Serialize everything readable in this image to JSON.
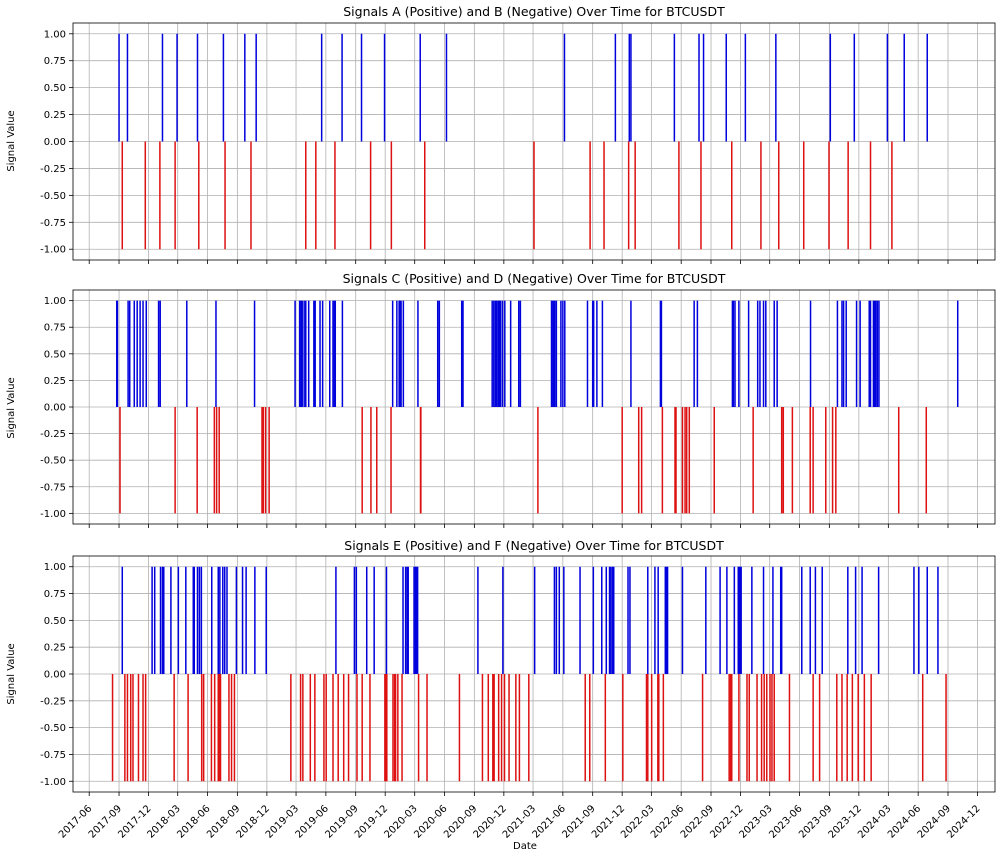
{
  "xlabel": "Date",
  "colors": {
    "positive": "#0000dd",
    "negative": "#dd1111",
    "grid": "#b0b0b0"
  },
  "x_ticks": [
    "2017-06",
    "2017-09",
    "2017-12",
    "2018-03",
    "2018-06",
    "2018-09",
    "2018-12",
    "2019-03",
    "2019-06",
    "2019-09",
    "2019-12",
    "2020-03",
    "2020-06",
    "2020-09",
    "2020-12",
    "2021-03",
    "2021-06",
    "2021-09",
    "2021-12",
    "2022-03",
    "2022-06",
    "2022-09",
    "2022-12",
    "2023-03",
    "2023-06",
    "2023-09",
    "2023-12",
    "2024-03",
    "2024-06",
    "2024-09",
    "2024-12"
  ],
  "chart_data": [
    {
      "type": "bar",
      "title": "Signals A (Positive) and B (Negative) Over Time for BTCUSDT",
      "ylabel": "Signal Value",
      "ylim": [
        -1.1,
        1.1
      ],
      "xlim": [
        "2017-04-12",
        "2025-01-24"
      ],
      "y_ticks": [
        "1.00",
        "0.75",
        "0.50",
        "0.25",
        "0.00",
        "-0.25",
        "-0.50",
        "-0.75",
        "-1.00"
      ],
      "grid": true,
      "series": [
        {
          "name": "",
          "value": 1,
          "dates": [
            "2017-09-01",
            "2017-09-27",
            "2018-01-13",
            "2018-02-27",
            "2018-05-01",
            "2018-07-20",
            "2018-09-24",
            "2018-10-29",
            "2019-05-19",
            "2019-07-21",
            "2019-09-19",
            "2019-11-29",
            "2020-03-18",
            "2020-06-07",
            "2021-06-06",
            "2021-11-10",
            "2021-12-23",
            "2021-12-28",
            "2022-05-11",
            "2022-07-26",
            "2022-08-09",
            "2022-10-18",
            "2022-12-16",
            "2023-03-20",
            "2023-09-04",
            "2023-11-17",
            "2024-02-27",
            "2024-04-19",
            "2024-06-29"
          ]
        },
        {
          "name": "",
          "value": -1,
          "dates": [
            "2017-09-11",
            "2017-11-21",
            "2018-01-05",
            "2018-02-21",
            "2018-05-05",
            "2018-07-25",
            "2018-10-13",
            "2019-03-31",
            "2019-05-01",
            "2019-06-29",
            "2019-10-17",
            "2019-12-20",
            "2020-04-01",
            "2021-03-04",
            "2021-08-24",
            "2021-10-06",
            "2021-12-21",
            "2022-01-10",
            "2022-05-25",
            "2022-08-01",
            "2022-11-04",
            "2023-02-02",
            "2023-03-29",
            "2023-06-14",
            "2023-08-31",
            "2023-10-29",
            "2024-01-06",
            "2024-03-12"
          ]
        }
      ]
    },
    {
      "type": "bar",
      "title": "Signals C (Positive) and D (Negative) Over Time for BTCUSDT",
      "ylabel": "Signal Value",
      "ylim": [
        -1.1,
        1.1
      ],
      "xlim": [
        "2017-04-12",
        "2025-01-24"
      ],
      "y_ticks": [
        "1.00",
        "0.75",
        "0.50",
        "0.25",
        "0.00",
        "-0.25",
        "-0.50",
        "-0.75",
        "-1.00"
      ],
      "grid": true,
      "series": [
        {
          "name": "",
          "value": 1,
          "dates": [
            "2017-08-25",
            "2017-08-27",
            "2017-09-29",
            "2017-10-04",
            "2017-10-18",
            "2017-10-27",
            "2017-11-05",
            "2017-11-14",
            "2017-11-24",
            "2018-01-01",
            "2018-01-06",
            "2018-03-29",
            "2018-06-27",
            "2018-10-24",
            "2019-02-26",
            "2019-03-12",
            "2019-03-16",
            "2019-03-20",
            "2019-03-26",
            "2019-03-31",
            "2019-04-09",
            "2019-04-25",
            "2019-04-29",
            "2019-05-14",
            "2019-05-22",
            "2019-06-13",
            "2019-06-23",
            "2019-06-27",
            "2019-06-30",
            "2019-07-22",
            "2019-12-24",
            "2020-01-06",
            "2020-01-13",
            "2020-01-15",
            "2020-01-19",
            "2020-01-26",
            "2020-03-11",
            "2020-05-11",
            "2020-05-16",
            "2020-07-24",
            "2020-07-28",
            "2020-10-26",
            "2020-10-31",
            "2020-11-05",
            "2020-11-09",
            "2020-11-14",
            "2020-11-17",
            "2020-11-21",
            "2020-11-27",
            "2020-12-04",
            "2020-12-22",
            "2021-01-16",
            "2021-01-21",
            "2021-04-27",
            "2021-04-29",
            "2021-05-03",
            "2021-05-07",
            "2021-05-12",
            "2021-05-26",
            "2021-06-01",
            "2021-06-07",
            "2021-08-16",
            "2021-09-01",
            "2021-09-04",
            "2021-09-14",
            "2021-10-01",
            "2021-12-28",
            "2022-03-29",
            "2022-04-01",
            "2022-07-11",
            "2022-07-21",
            "2022-11-06",
            "2022-11-09",
            "2022-11-14",
            "2022-11-26",
            "2022-12-26",
            "2023-01-23",
            "2023-01-30",
            "2023-02-10",
            "2023-02-17",
            "2023-03-15",
            "2023-03-24",
            "2023-07-05",
            "2023-09-26",
            "2023-10-10",
            "2023-10-15",
            "2023-10-23",
            "2023-11-24",
            "2023-12-05",
            "2024-01-02",
            "2024-01-06",
            "2024-01-15",
            "2024-01-18",
            "2024-01-22",
            "2024-01-27",
            "2024-02-01",
            "2024-10-01"
          ]
        },
        {
          "name": "",
          "value": -1,
          "dates": [
            "2017-09-04",
            "2018-02-21",
            "2018-04-30",
            "2018-06-22",
            "2018-06-29",
            "2018-07-07",
            "2018-11-16",
            "2018-11-20",
            "2018-11-27",
            "2018-12-08",
            "2019-09-21",
            "2019-10-18",
            "2019-11-05",
            "2019-12-19",
            "2020-03-19",
            "2020-03-20",
            "2021-03-16",
            "2021-12-01",
            "2022-01-21",
            "2022-01-30",
            "2022-04-04",
            "2022-05-13",
            "2022-05-16",
            "2022-06-05",
            "2022-06-13",
            "2022-06-18",
            "2022-06-26",
            "2022-09-11",
            "2023-01-09",
            "2023-04-07",
            "2023-04-12",
            "2023-05-10",
            "2023-07-04",
            "2023-07-13",
            "2023-08-21",
            "2023-09-11",
            "2023-09-21",
            "2024-04-02",
            "2024-06-26"
          ]
        }
      ]
    },
    {
      "type": "bar",
      "title": "Signals E (Positive) and F (Negative) Over Time for BTCUSDT",
      "ylabel": "Signal Value",
      "ylim": [
        -1.1,
        1.1
      ],
      "xlim": [
        "2017-04-12",
        "2025-01-24"
      ],
      "y_ticks": [
        "1.00",
        "0.75",
        "0.50",
        "0.25",
        "0.00",
        "-0.25",
        "-0.50",
        "-0.75",
        "-1.00"
      ],
      "grid": true,
      "series": [
        {
          "name": "",
          "value": 1,
          "dates": [
            "2017-09-11",
            "2017-12-12",
            "2017-12-20",
            "2018-01-07",
            "2018-01-13",
            "2018-01-17",
            "2018-02-08",
            "2018-03-03",
            "2018-03-26",
            "2018-04-18",
            "2018-04-21",
            "2018-05-01",
            "2018-05-07",
            "2018-05-13",
            "2018-06-14",
            "2018-07-04",
            "2018-07-09",
            "2018-07-18",
            "2018-07-24",
            "2018-07-31",
            "2018-08-29",
            "2018-09-17",
            "2018-09-28",
            "2018-10-25",
            "2018-11-29",
            "2019-07-02",
            "2019-08-28",
            "2019-09-03",
            "2019-10-05",
            "2019-10-28",
            "2019-12-05",
            "2020-01-25",
            "2020-02-02",
            "2020-02-07",
            "2020-02-10",
            "2020-02-28",
            "2020-03-03",
            "2020-03-06",
            "2020-03-10",
            "2020-09-12",
            "2020-11-28",
            "2021-03-06",
            "2021-05-06",
            "2021-05-12",
            "2021-05-21",
            "2021-06-04",
            "2021-07-24",
            "2021-09-03",
            "2021-09-29",
            "2021-10-13",
            "2021-10-23",
            "2021-10-27",
            "2021-11-01",
            "2021-11-05",
            "2021-12-19",
            "2021-12-25",
            "2022-02-18",
            "2022-03-12",
            "2022-03-22",
            "2022-04-13",
            "2022-04-17",
            "2022-04-20",
            "2022-06-05",
            "2022-08-16",
            "2022-09-29",
            "2022-10-20",
            "2022-11-12",
            "2022-11-24",
            "2022-11-26",
            "2022-11-29",
            "2022-12-03",
            "2023-01-05",
            "2023-02-10",
            "2023-03-11",
            "2023-04-04",
            "2023-04-07",
            "2023-06-08",
            "2023-07-04",
            "2023-07-20",
            "2023-08-10",
            "2023-10-28",
            "2023-11-21",
            "2023-12-11",
            "2024-01-31",
            "2024-05-19",
            "2024-06-03",
            "2024-06-29",
            "2024-08-01"
          ]
        },
        {
          "name": "",
          "value": -1,
          "dates": [
            "2017-08-12",
            "2017-09-19",
            "2017-09-27",
            "2017-10-07",
            "2017-10-14",
            "2017-10-31",
            "2017-11-14",
            "2017-11-22",
            "2018-02-18",
            "2018-04-02",
            "2018-05-14",
            "2018-05-20",
            "2018-06-13",
            "2018-06-23",
            "2018-07-04",
            "2018-07-07",
            "2018-07-11",
            "2018-08-06",
            "2018-08-14",
            "2018-08-23",
            "2019-02-13",
            "2019-03-15",
            "2019-03-22",
            "2019-04-14",
            "2019-04-28",
            "2019-05-26",
            "2019-06-02",
            "2019-06-23",
            "2019-07-09",
            "2019-07-26",
            "2019-08-10",
            "2019-09-05",
            "2019-09-21",
            "2019-10-15",
            "2019-11-30",
            "2019-12-04",
            "2019-12-06",
            "2019-12-25",
            "2019-12-30",
            "2020-01-02",
            "2020-01-09",
            "2020-01-22",
            "2020-03-13",
            "2020-04-08",
            "2020-07-17",
            "2020-09-26",
            "2020-10-14",
            "2020-10-28",
            "2020-11-01",
            "2020-11-15",
            "2020-11-24",
            "2020-12-03",
            "2020-12-17",
            "2021-01-07",
            "2021-01-18",
            "2021-02-16",
            "2021-08-09",
            "2021-08-23",
            "2021-10-10",
            "2021-12-03",
            "2022-02-14",
            "2022-02-18",
            "2022-03-02",
            "2022-03-21",
            "2022-03-24",
            "2022-04-07",
            "2022-08-06",
            "2022-10-27",
            "2022-10-31",
            "2022-11-04",
            "2022-11-26",
            "2022-12-21",
            "2022-12-28",
            "2023-01-21",
            "2023-02-04",
            "2023-02-12",
            "2023-02-20",
            "2023-03-02",
            "2023-03-08",
            "2023-03-15",
            "2023-05-01",
            "2023-07-13",
            "2023-08-02",
            "2023-09-24",
            "2023-10-10",
            "2023-10-26",
            "2023-11-11",
            "2023-11-29",
            "2023-12-18",
            "2024-01-08",
            "2024-06-15",
            "2024-08-26"
          ]
        }
      ]
    }
  ]
}
